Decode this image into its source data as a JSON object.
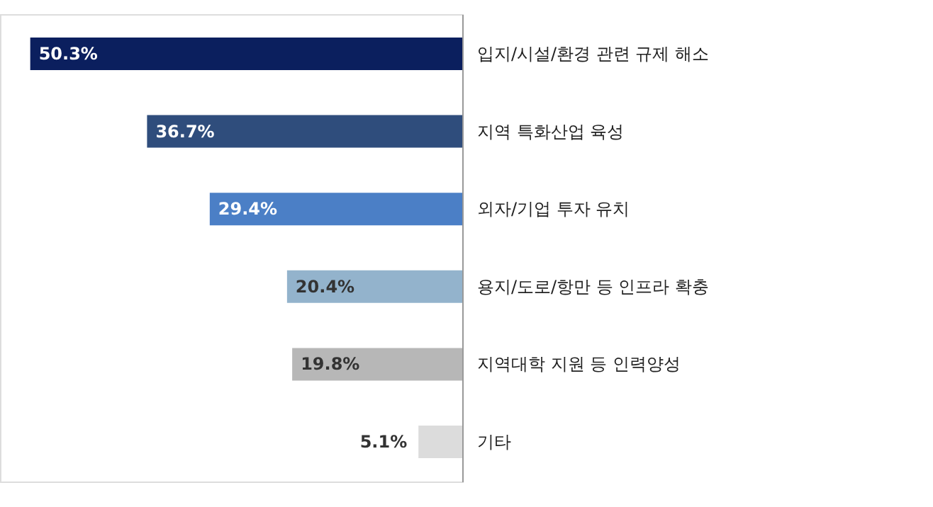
{
  "chart_data": {
    "type": "bar",
    "orientation": "horizontal",
    "categories": [
      "입지/시설/환경 관련 규제 해소",
      "지역 특화산업 육성",
      "외자/기업 투자 유치",
      "용지/도로/항만 등 인프라 확충",
      "지역대학 지원 등 인력양성",
      "기타"
    ],
    "values": [
      50.3,
      36.7,
      29.4,
      20.4,
      19.8,
      5.1
    ],
    "value_labels": [
      "50.3%",
      "36.7%",
      "29.4%",
      "20.4%",
      "19.8%",
      "5.1%"
    ],
    "colors": [
      "#0b1f5e",
      "#2f4d7c",
      "#4b7fc6",
      "#93b3cc",
      "#b7b7b7",
      "#dcdcdc"
    ],
    "grid": false
  }
}
